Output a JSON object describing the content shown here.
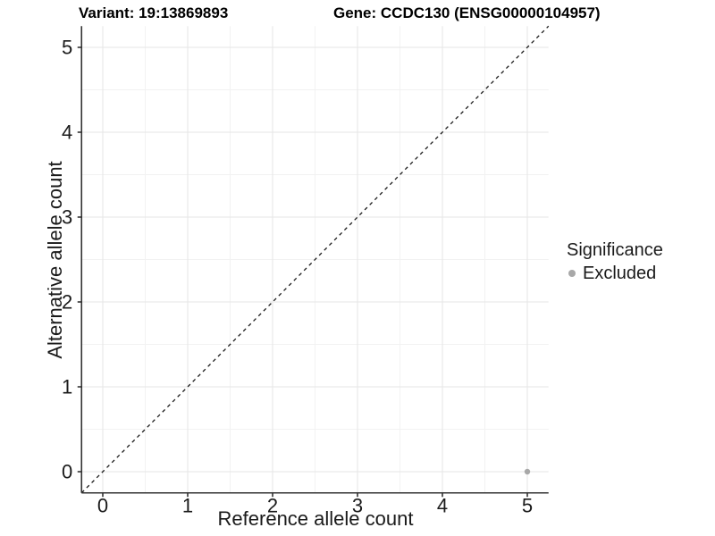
{
  "titles": {
    "variant": "Variant: 19:13869893",
    "gene": "Gene: CCDC130 (ENSG00000104957)"
  },
  "chart_data": {
    "type": "scatter",
    "xlabel": "Reference allele count",
    "ylabel": "Alternative allele count",
    "xlim": [
      -0.25,
      5.25
    ],
    "ylim": [
      -0.25,
      5.25
    ],
    "xticks": [
      0,
      1,
      2,
      3,
      4,
      5
    ],
    "yticks": [
      0,
      1,
      2,
      3,
      4,
      5
    ],
    "minor_gridlines": [
      0.5,
      1.5,
      2.5,
      3.5,
      4.5
    ],
    "grid": "on",
    "identity_line": {
      "slope": 1,
      "intercept": 0,
      "style": "dashed",
      "color": "#1a1a1a"
    },
    "points": [
      {
        "x": 5,
        "y": 0,
        "group": "Excluded",
        "color": "#a8a8a8"
      }
    ],
    "legend": {
      "title": "Significance",
      "position": "right",
      "entries": [
        {
          "label": "Excluded",
          "color": "#a8a8a8"
        }
      ]
    },
    "colors": {
      "axis_line": "#333333",
      "tick_label": "#1a1a1a",
      "grid_major": "#e6e6e6",
      "grid_minor": "#f2f2f2",
      "point": "#a8a8a8"
    }
  }
}
